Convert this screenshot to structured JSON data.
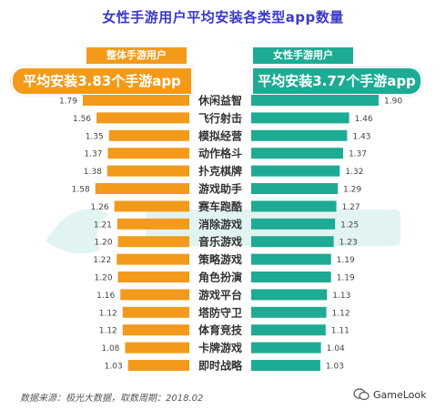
{
  "title": "女性手游用户平均安装各类型app数量",
  "left_segment": {
    "label": "整体手游用户",
    "average": "平均安装3.83个手游app",
    "color": "#f39a1a"
  },
  "right_segment": {
    "label": "女性手游用户",
    "average": "平均安装3.77个手游app",
    "color": "#1dab94"
  },
  "footer": {
    "source": "数据来源：极光大数据，取数周期：2018.02",
    "brand": "GameLook"
  },
  "watermark_icon": "jiguang-logo-icon",
  "chart_data": {
    "type": "bar",
    "categories": [
      "休闲益智",
      "飞行射击",
      "模拟经营",
      "动作格斗",
      "扑克棋牌",
      "游戏助手",
      "赛车跑酷",
      "消除游戏",
      "音乐游戏",
      "策略游戏",
      "角色扮演",
      "游戏平台",
      "塔防守卫",
      "体育竞技",
      "卡牌游戏",
      "即时战略"
    ],
    "series": [
      {
        "name": "整体手游用户",
        "values": [
          1.79,
          1.56,
          1.35,
          1.37,
          1.38,
          1.58,
          1.26,
          1.21,
          1.2,
          1.22,
          1.2,
          1.16,
          1.12,
          1.12,
          1.08,
          1.03
        ],
        "color": "#f39a1a"
      },
      {
        "name": "女性手游用户",
        "values": [
          1.9,
          1.46,
          1.43,
          1.37,
          1.32,
          1.29,
          1.27,
          1.25,
          1.23,
          1.19,
          1.19,
          1.13,
          1.12,
          1.11,
          1.04,
          1.03
        ],
        "color": "#1dab94"
      }
    ]
  }
}
